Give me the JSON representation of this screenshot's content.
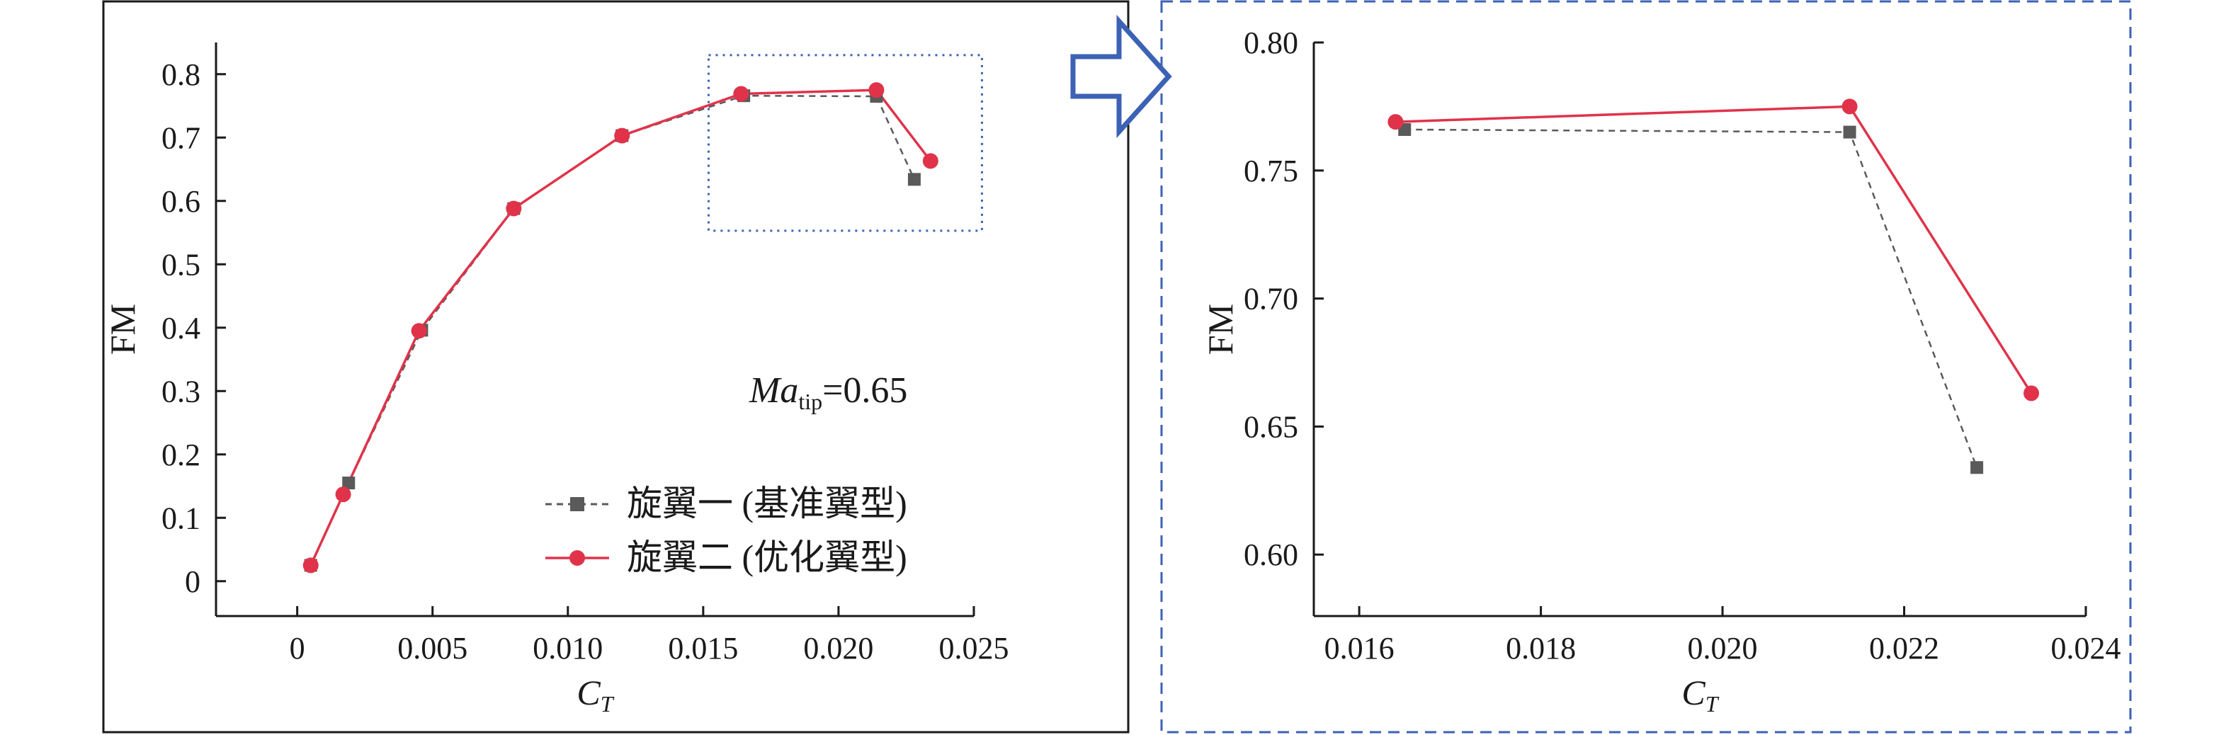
{
  "colors": {
    "base": "#5a5a5a",
    "optimized": "#e0334a",
    "frame": "#1a1a1a",
    "zoom_box": "#3c62b5",
    "arrow": "#3c62b5"
  },
  "annotation": {
    "italic": "Ma",
    "sub": "tip",
    "rest": "=0.65"
  },
  "chart_data": [
    {
      "type": "line",
      "xlabel": "C",
      "xlabel_sub": "T",
      "ylabel": "FM",
      "xlim": [
        -0.003,
        0.025
      ],
      "ylim": [
        -0.055,
        0.85
      ],
      "xticks": [
        "0",
        "0.005",
        "0.010",
        "0.015",
        "0.020",
        "0.025"
      ],
      "xtick_values": [
        0,
        0.005,
        0.01,
        0.015,
        0.02,
        0.025
      ],
      "yticks": [
        "0",
        "0.1",
        "0.2",
        "0.3",
        "0.4",
        "0.5",
        "0.6",
        "0.7",
        "0.8"
      ],
      "ytick_values": [
        0,
        0.1,
        0.2,
        0.3,
        0.4,
        0.5,
        0.6,
        0.7,
        0.8
      ],
      "legend_position": "bottom-right",
      "series": [
        {
          "name": "旋翼一 (基准翼型)",
          "style": "dashed",
          "marker": "square",
          "x": [
            0.0005,
            0.0019,
            0.0046,
            0.008,
            0.012,
            0.0165,
            0.0214,
            0.0228
          ],
          "y": [
            0.025,
            0.155,
            0.396,
            0.588,
            0.703,
            0.766,
            0.765,
            0.634
          ]
        },
        {
          "name": "旋翼二 (优化翼型)",
          "style": "solid",
          "marker": "circle",
          "x": [
            0.0005,
            0.0017,
            0.0045,
            0.008,
            0.012,
            0.0164,
            0.0214,
            0.0234
          ],
          "y": [
            0.025,
            0.137,
            0.395,
            0.588,
            0.703,
            0.769,
            0.775,
            0.663
          ]
        }
      ],
      "zoom_region": {
        "x": [
          0.0152,
          0.0253
        ],
        "y": [
          0.553,
          0.83
        ]
      }
    },
    {
      "type": "line",
      "xlabel": "C",
      "xlabel_sub": "T",
      "ylabel": "FM",
      "xlim": [
        0.0155,
        0.024
      ],
      "ylim": [
        0.576,
        0.8
      ],
      "xticks": [
        "0.016",
        "0.018",
        "0.020",
        "0.022",
        "0.024"
      ],
      "xtick_values": [
        0.016,
        0.018,
        0.02,
        0.022,
        0.024
      ],
      "yticks": [
        "0.60",
        "0.65",
        "0.70",
        "0.75",
        "0.80"
      ],
      "ytick_values": [
        0.6,
        0.65,
        0.7,
        0.75,
        0.8
      ],
      "series": [
        {
          "name": "旋翼一 (基准翼型)",
          "style": "dashed",
          "marker": "square",
          "x": [
            0.0165,
            0.0214,
            0.0228
          ],
          "y": [
            0.766,
            0.765,
            0.634
          ]
        },
        {
          "name": "旋翼二 (优化翼型)",
          "style": "solid",
          "marker": "circle",
          "x": [
            0.0164,
            0.0214,
            0.0234
          ],
          "y": [
            0.769,
            0.775,
            0.663
          ]
        }
      ]
    }
  ]
}
